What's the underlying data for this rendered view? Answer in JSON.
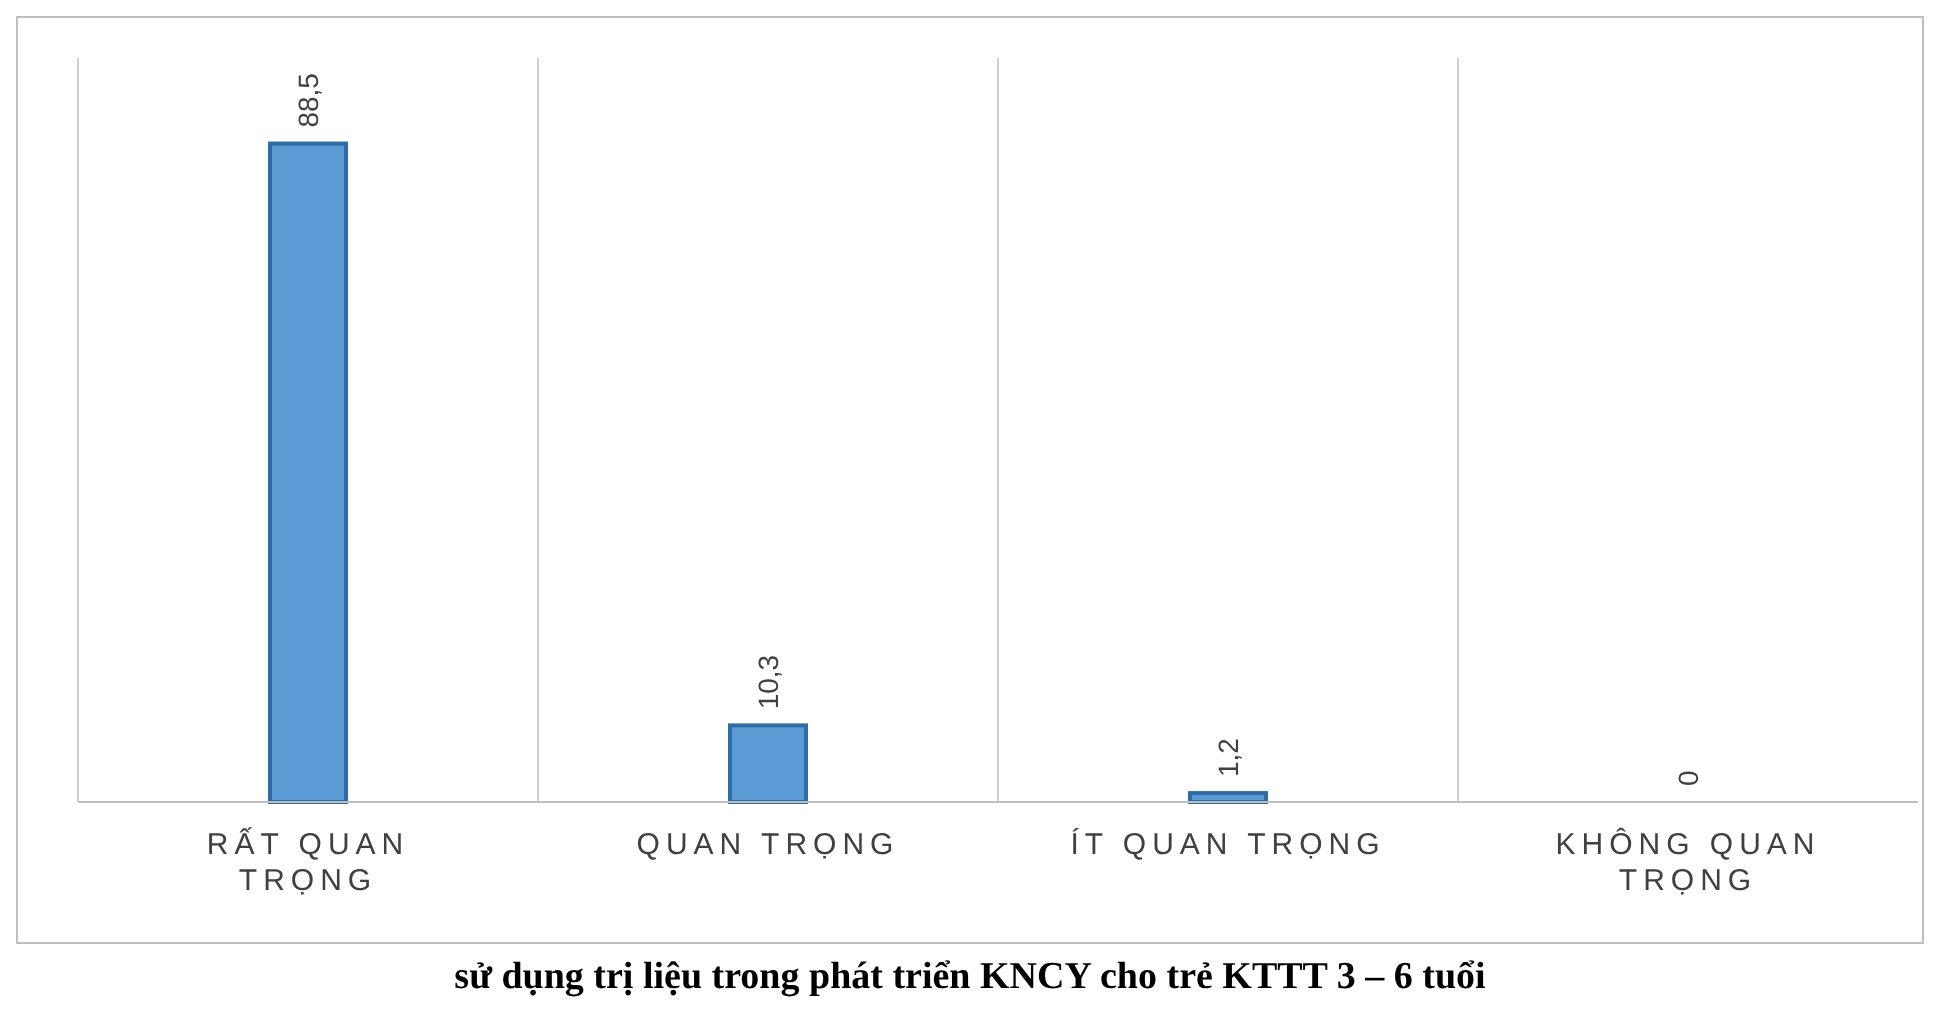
{
  "chart_data": {
    "type": "bar",
    "title": "sử dụng trị liệu trong phát triển KNCY cho trẻ KTTT 3 – 6 tuổi",
    "categories": [
      "RẤT QUAN TRỌNG",
      "QUAN TRỌNG",
      "ÍT QUAN TRỌNG",
      "KHÔNG QUAN TRỌNG"
    ],
    "values": [
      88.5,
      10.3,
      1.2,
      0
    ],
    "value_labels": [
      "88,5",
      "10,3",
      "1,2",
      "0"
    ],
    "color": "#5b9bd5",
    "grid": "x"
  }
}
